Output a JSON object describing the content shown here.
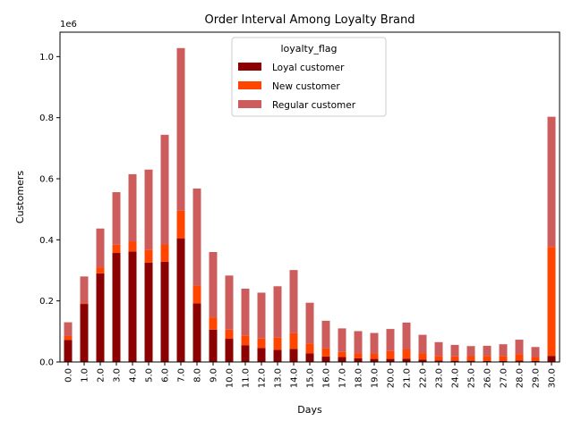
{
  "chart_data": {
    "type": "bar",
    "stacked": true,
    "title": "Order Interval Among Loyalty Brand",
    "xlabel": "Days",
    "ylabel": "Customers",
    "scale_label": "1e6",
    "ylim": [
      0,
      1080000
    ],
    "yticks": [
      0,
      200000,
      400000,
      600000,
      800000,
      1000000
    ],
    "ytick_labels": [
      "0.0",
      "0.2",
      "0.4",
      "0.6",
      "0.8",
      "1.0"
    ],
    "categories": [
      "0.0",
      "1.0",
      "2.0",
      "3.0",
      "4.0",
      "5.0",
      "6.0",
      "7.0",
      "8.0",
      "9.0",
      "10.0",
      "11.0",
      "12.0",
      "13.0",
      "14.0",
      "15.0",
      "16.0",
      "17.0",
      "18.0",
      "19.0",
      "20.0",
      "21.0",
      "22.0",
      "23.0",
      "24.0",
      "25.0",
      "26.0",
      "27.0",
      "28.0",
      "29.0",
      "30.0"
    ],
    "legend": {
      "title": "loyalty_flag",
      "position": "upper-center"
    },
    "series": [
      {
        "name": "Loyal customer",
        "color": "#8b0000",
        "values": [
          72000,
          190000,
          290000,
          357000,
          362000,
          325000,
          328000,
          405000,
          192000,
          106000,
          76000,
          55000,
          46000,
          40000,
          43000,
          28000,
          18000,
          16000,
          12000,
          10000,
          10000,
          11000,
          8000,
          5000,
          4000,
          4000,
          3000,
          3000,
          5000,
          3000,
          20000
        ]
      },
      {
        "name": "New customer",
        "color": "#ff4500",
        "values": [
          13000,
          3000,
          20000,
          27000,
          33000,
          43000,
          57000,
          90000,
          58000,
          40000,
          30000,
          32000,
          31000,
          40000,
          51000,
          33000,
          27000,
          17000,
          17000,
          18000,
          26000,
          30000,
          21000,
          15000,
          14000,
          15000,
          17000,
          17000,
          21000,
          13000,
          357000
        ]
      },
      {
        "name": "Regular customer",
        "color": "#cd5c5c",
        "values": [
          45000,
          87000,
          127000,
          172000,
          220000,
          262000,
          359000,
          533000,
          318000,
          214000,
          177000,
          153000,
          150000,
          168000,
          207000,
          133000,
          90000,
          77000,
          72000,
          67000,
          72000,
          88000,
          60000,
          45000,
          38000,
          33000,
          33000,
          38000,
          47000,
          33000,
          426000
        ]
      }
    ]
  }
}
